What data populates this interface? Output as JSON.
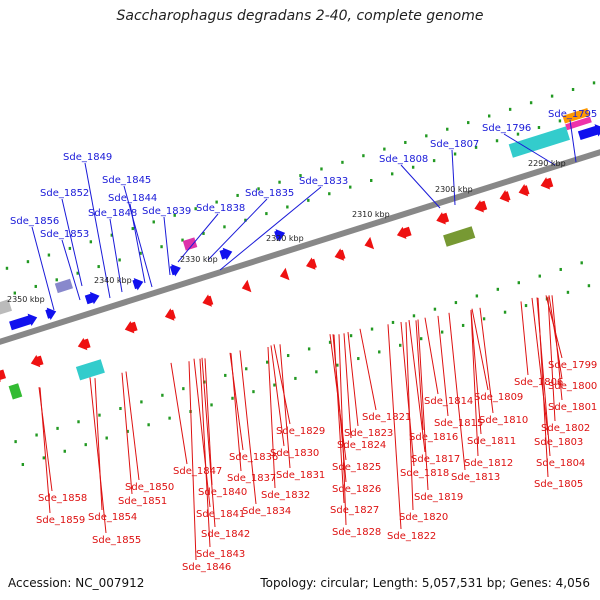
{
  "title": "Saccharophagus degradans 2-40, complete genome",
  "footer": {
    "accession": "Accession: NC_007912",
    "summary": "Topology: circular; Length: 5,057,531 bp; Genes: 4,056"
  },
  "colors": {
    "top_label": "#1a1ad8",
    "bottom_label": "#dd1111",
    "backbone": "#888888",
    "forward_gene": "#1111ee",
    "reverse_gene": "#ee1111",
    "tick_mark": "#229922"
  },
  "ticks": [
    "2290 kbp",
    "2300 kbp",
    "2310 kbp",
    "2320 kbp",
    "2330 kbp",
    "2340 kbp",
    "2350 kbp"
  ],
  "top_labels": [
    "Sde_1795",
    "Sde_1796",
    "Sde_1807",
    "Sde_1808",
    "Sde_1833",
    "Sde_1835",
    "Sde_1838",
    "Sde_1839",
    "Sde_1844",
    "Sde_1845",
    "Sde_1848",
    "Sde_1849",
    "Sde_1852",
    "Sde_1853",
    "Sde_1856"
  ],
  "bottom_labels": [
    "Sde_1799",
    "Sde_1800",
    "Sde_1801",
    "Sde_1802",
    "Sde_1803",
    "Sde_1804",
    "Sde_1805",
    "Sde_1806",
    "Sde_1809",
    "Sde_1810",
    "Sde_1811",
    "Sde_1812",
    "Sde_1813",
    "Sde_1814",
    "Sde_1815",
    "Sde_1816",
    "Sde_1817",
    "Sde_1818",
    "Sde_1819",
    "Sde_1820",
    "Sde_1821",
    "Sde_1822",
    "Sde_1823",
    "Sde_1824",
    "Sde_1825",
    "Sde_1826",
    "Sde_1827",
    "Sde_1828",
    "Sde_1829",
    "Sde_1830",
    "Sde_1831",
    "Sde_1832",
    "Sde_1834",
    "Sde_1836",
    "Sde_1837",
    "Sde_1840",
    "Sde_1841",
    "Sde_1842",
    "Sde_1843",
    "Sde_1846",
    "Sde_1847",
    "Sde_1850",
    "Sde_1851",
    "Sde_1854",
    "Sde_1855",
    "Sde_1858",
    "Sde_1859"
  ]
}
